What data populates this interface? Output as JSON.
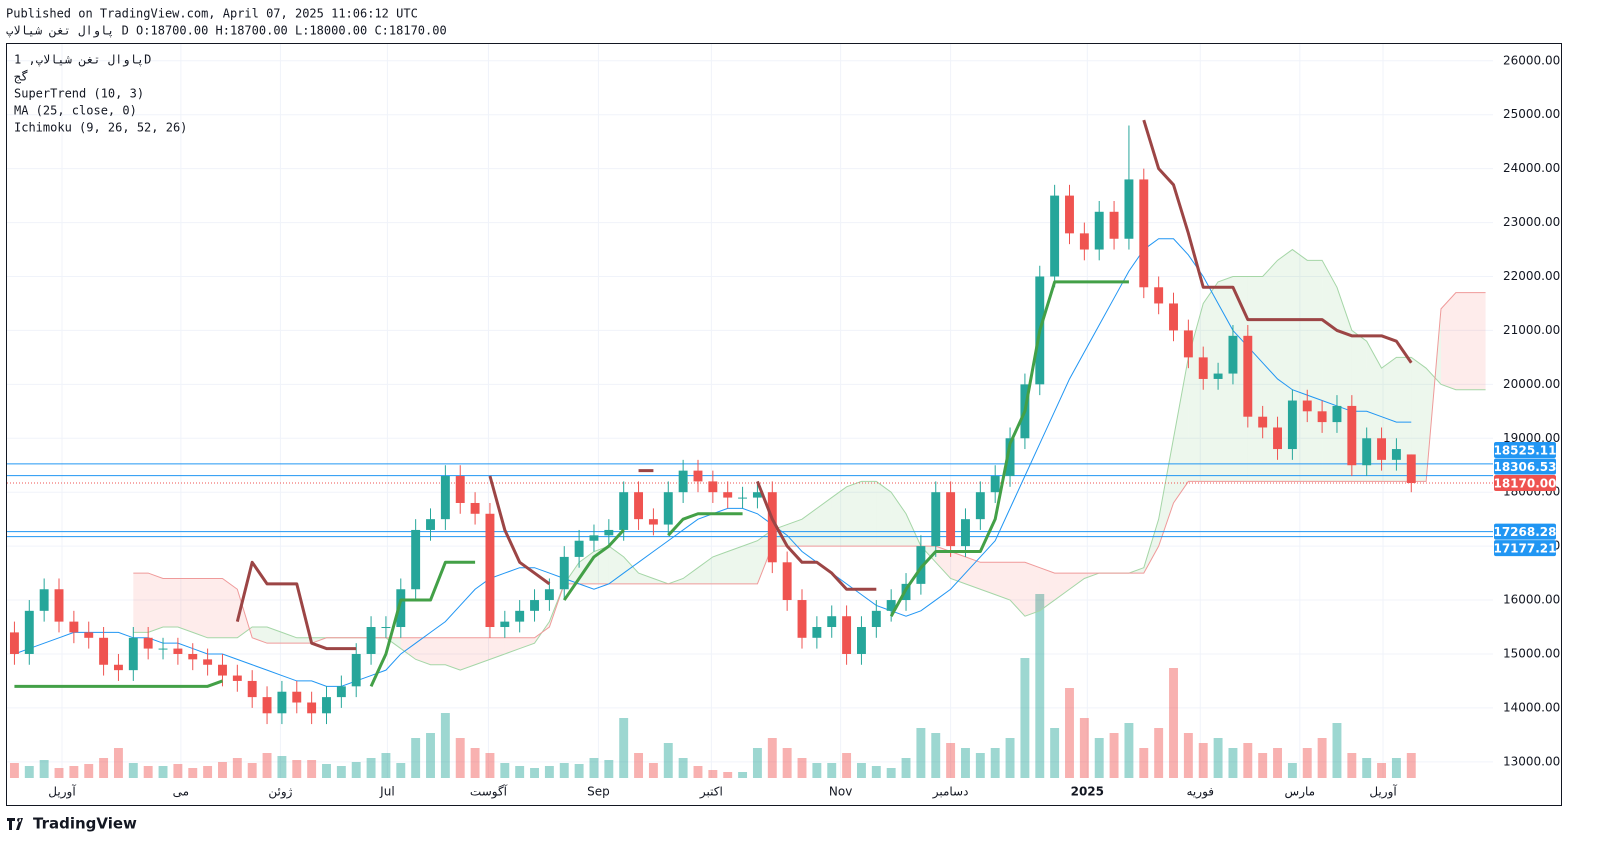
{
  "header": {
    "published": "Published on TradingView.com, April 07, 2025 11:06:12 UTC",
    "ohlc_line": "پاوال تغن شیالاپ D O:18700.00 H:18700.00 L:18000.00 C:18170.00"
  },
  "legend": {
    "symbol": "پاوال تغن شیالاپ, 1D",
    "exchange": "گج",
    "indicators": [
      "SuperTrend (10, 3)",
      "MA (25, close, 0)",
      "Ichimoku (9, 26, 52, 26)"
    ]
  },
  "footer": {
    "brand": "TradingView"
  },
  "chart_data": {
    "type": "candlestick",
    "grid": true,
    "xlim": [
      -0.5,
      99.5
    ],
    "xticks": [
      {
        "value": 3.2,
        "label": "آوریل"
      },
      {
        "value": 11.2,
        "label": "می"
      },
      {
        "value": 17.9,
        "label": "ژوئن"
      },
      {
        "value": 25.1,
        "label": "Jul"
      },
      {
        "value": 31.9,
        "label": "آگوست"
      },
      {
        "value": 39.3,
        "label": "Sep"
      },
      {
        "value": 46.9,
        "label": "اکتبر"
      },
      {
        "value": 55.6,
        "label": "Nov"
      },
      {
        "value": 63.0,
        "label": "دسامبر"
      },
      {
        "value": 72.2,
        "label": "2025"
      },
      {
        "value": 79.8,
        "label": "فوریه"
      },
      {
        "value": 86.5,
        "label": "مارس"
      },
      {
        "value": 92.1,
        "label": "آوریل"
      }
    ],
    "ylim": [
      12700,
      26330
    ],
    "yticks": [
      {
        "value": 13000,
        "label": "13000.00"
      },
      {
        "value": 14000,
        "label": "14000.00"
      },
      {
        "value": 15000,
        "label": "15000.00"
      },
      {
        "value": 16000,
        "label": "16000.00"
      },
      {
        "value": 17000,
        "label": "17000.00"
      },
      {
        "value": 18000,
        "label": "18000.00"
      },
      {
        "value": 19000,
        "label": "19000.00"
      },
      {
        "value": 20000,
        "label": "20000.00"
      },
      {
        "value": 21000,
        "label": "21000.00"
      },
      {
        "value": 22000,
        "label": "22000.00"
      },
      {
        "value": 23000,
        "label": "23000.00"
      },
      {
        "value": 24000,
        "label": "24000.00"
      },
      {
        "value": 25000,
        "label": "25000.00"
      },
      {
        "value": 26000,
        "label": "26000.00"
      }
    ],
    "up_color": "#26a69a",
    "down_color": "#ef5350",
    "open": [
      15400,
      15000,
      15800,
      16200,
      15600,
      15400,
      15300,
      14800,
      14700,
      15300,
      15100,
      15100,
      15000,
      14900,
      14800,
      14600,
      14500,
      14200,
      13900,
      14300,
      14100,
      13900,
      14200,
      14400,
      15000,
      15500,
      15500,
      16200,
      17300,
      17500,
      18300,
      17800,
      17600,
      15500,
      15600,
      15800,
      16000,
      16200,
      16800,
      17100,
      17200,
      17300,
      18000,
      17500,
      17400,
      18000,
      18400,
      18200,
      18000,
      17900,
      17900,
      18000,
      16700,
      16000,
      15300,
      15500,
      15700,
      15000,
      15500,
      15800,
      16000,
      16300,
      17000,
      18000,
      17000,
      17500,
      18000,
      18300,
      19000,
      20000,
      22000,
      23500,
      22800,
      22500,
      23200,
      22700,
      23800,
      21800,
      21500,
      21000,
      20500,
      20100,
      20200,
      20900,
      19400,
      19200,
      18800,
      19700,
      19500,
      19300,
      19600,
      18500,
      19000,
      18600,
      18700
    ],
    "high": [
      15600,
      16000,
      16400,
      16400,
      15800,
      15600,
      15500,
      15000,
      15500,
      15500,
      15300,
      15300,
      15200,
      15100,
      15000,
      14800,
      14700,
      14400,
      14500,
      14500,
      14300,
      14400,
      14600,
      15200,
      15700,
      15700,
      16400,
      17500,
      17700,
      18500,
      18500,
      18000,
      17800,
      15800,
      16000,
      16200,
      16400,
      17000,
      17300,
      17400,
      17500,
      18200,
      18200,
      17700,
      18200,
      18600,
      18600,
      18400,
      18200,
      18100,
      18200,
      18200,
      16900,
      16200,
      15700,
      15900,
      15900,
      15700,
      16000,
      16200,
      16500,
      17200,
      18200,
      18200,
      17700,
      18200,
      18500,
      19200,
      20200,
      22200,
      23700,
      23700,
      23000,
      23400,
      23400,
      24800,
      24000,
      22000,
      21700,
      21200,
      20700,
      20400,
      21100,
      21100,
      19600,
      19400,
      19900,
      19900,
      19700,
      19800,
      19800,
      19200,
      19200,
      19000,
      18700
    ],
    "low": [
      14800,
      14800,
      15600,
      15400,
      15200,
      15100,
      14600,
      14500,
      14500,
      14900,
      14900,
      14800,
      14700,
      14600,
      14400,
      14300,
      14000,
      13700,
      13700,
      13900,
      13700,
      13700,
      14000,
      14200,
      14800,
      15300,
      15300,
      16000,
      17100,
      17300,
      17600,
      17400,
      15300,
      15300,
      15400,
      15600,
      15800,
      16000,
      16600,
      16900,
      17000,
      17100,
      17300,
      17200,
      17200,
      17800,
      18000,
      17800,
      17700,
      17700,
      17700,
      16500,
      15800,
      15100,
      15100,
      15300,
      14800,
      14800,
      15300,
      15600,
      15800,
      16100,
      16800,
      16800,
      16800,
      17300,
      17800,
      18100,
      18800,
      19800,
      21800,
      22600,
      22300,
      22300,
      22500,
      22500,
      21600,
      21300,
      20800,
      20300,
      19900,
      19900,
      20000,
      19200,
      19000,
      18600,
      18600,
      19300,
      19100,
      19100,
      18300,
      18300,
      18400,
      18400,
      18000
    ],
    "close": [
      15000,
      15800,
      16200,
      15600,
      15400,
      15300,
      14800,
      14700,
      15300,
      15100,
      15100,
      15000,
      14900,
      14800,
      14600,
      14500,
      14200,
      13900,
      14300,
      14100,
      13900,
      14200,
      14400,
      15000,
      15500,
      15500,
      16200,
      17300,
      17500,
      18300,
      17800,
      17600,
      15500,
      15600,
      15800,
      16000,
      16200,
      16800,
      17100,
      17200,
      17300,
      18000,
      17500,
      17400,
      18000,
      18400,
      18200,
      18000,
      17900,
      17900,
      18000,
      16700,
      16000,
      15300,
      15500,
      15700,
      15000,
      15500,
      15800,
      16000,
      16300,
      17000,
      18000,
      17000,
      17500,
      18000,
      18300,
      19000,
      20000,
      22000,
      23500,
      22800,
      22500,
      23200,
      22700,
      23800,
      21800,
      21500,
      21000,
      20500,
      20100,
      20200,
      20900,
      19400,
      19200,
      18800,
      19700,
      19500,
      19300,
      19600,
      18500,
      19000,
      18600,
      18800,
      18170
    ],
    "volume": [
      15,
      12,
      18,
      10,
      12,
      14,
      20,
      30,
      15,
      12,
      12,
      14,
      10,
      12,
      16,
      20,
      15,
      25,
      22,
      18,
      18,
      14,
      12,
      16,
      20,
      25,
      15,
      40,
      45,
      65,
      40,
      30,
      25,
      15,
      12,
      10,
      12,
      15,
      14,
      20,
      18,
      60,
      25,
      15,
      35,
      20,
      12,
      8,
      6,
      6,
      30,
      40,
      30,
      20,
      15,
      15,
      25,
      15,
      12,
      10,
      20,
      50,
      45,
      35,
      30,
      25,
      30,
      40,
      120,
      184,
      50,
      90,
      60,
      40,
      45,
      55,
      30,
      50,
      110,
      45,
      35,
      40,
      30,
      35,
      25,
      30,
      15,
      30,
      40,
      55,
      25,
      20,
      15,
      20,
      25
    ],
    "supertrend": {
      "up_color": "#43a047",
      "down_color": "#9c4545",
      "values": [
        14400,
        14400,
        14400,
        14400,
        14400,
        14400,
        14400,
        14400,
        14400,
        14400,
        14400,
        14400,
        14400,
        14400,
        14500,
        15600,
        16700,
        16300,
        16300,
        16300,
        15200,
        15100,
        15100,
        15100,
        14400,
        15000,
        16000,
        16000,
        16000,
        16700,
        16700,
        16700,
        18300,
        17300,
        16700,
        16500,
        16300,
        16000,
        16400,
        16800,
        17000,
        17300,
        18400,
        18400,
        17200,
        17500,
        17600,
        17600,
        17600,
        17600,
        18200,
        17500,
        17000,
        16700,
        16700,
        16500,
        16200,
        16200,
        16200,
        15700,
        16200,
        16600,
        16900,
        16900,
        16900,
        16900,
        17500,
        18900,
        19500,
        21000,
        21900,
        21900,
        21900,
        21900,
        21900,
        21900,
        24900,
        24000,
        23700,
        22800,
        21800,
        21800,
        21800,
        21200,
        21200,
        21200,
        21200,
        21200,
        21200,
        21000,
        20900,
        20900,
        20900,
        20800,
        20400
      ]
    },
    "ma": {
      "color": "#2196f3",
      "values": [
        15000,
        15100,
        15200,
        15300,
        15400,
        15400,
        15400,
        15400,
        15300,
        15300,
        15200,
        15200,
        15100,
        15000,
        15000,
        14900,
        14800,
        14700,
        14600,
        14500,
        14500,
        14400,
        14400,
        14500,
        14600,
        14700,
        15000,
        15200,
        15400,
        15600,
        15900,
        16200,
        16400,
        16500,
        16600,
        16600,
        16500,
        16400,
        16300,
        16200,
        16300,
        16500,
        16700,
        16900,
        17100,
        17300,
        17500,
        17600,
        17700,
        17700,
        17600,
        17400,
        17200,
        16900,
        16700,
        16500,
        16300,
        16100,
        15900,
        15800,
        15700,
        15800,
        16000,
        16200,
        16500,
        16800,
        17100,
        17700,
        18300,
        18900,
        19500,
        20100,
        20600,
        21100,
        21600,
        22100,
        22500,
        22700,
        22700,
        22400,
        22000,
        21500,
        21000,
        20700,
        20400,
        20100,
        19900,
        19800,
        19700,
        19600,
        19500,
        19500,
        19400,
        19300,
        19300
      ]
    },
    "ichimoku": {
      "span_a_color": "#a5d6a7",
      "span_b_color": "#ef9a9a",
      "up_fill": "#4caf50",
      "down_fill": "#f44336",
      "span_a": [
        null,
        null,
        null,
        null,
        null,
        null,
        null,
        null,
        15400,
        15400,
        15500,
        15500,
        15400,
        15300,
        15300,
        15300,
        15500,
        15500,
        15400,
        15300,
        15300,
        15300,
        15300,
        15300,
        15300,
        15300,
        15100,
        14900,
        14800,
        14800,
        14700,
        14800,
        14900,
        15000,
        15100,
        15200,
        15600,
        16300,
        16700,
        16900,
        17000,
        16800,
        16500,
        16400,
        16300,
        16400,
        16600,
        16800,
        16900,
        17000,
        17100,
        17300,
        17400,
        17500,
        17700,
        17900,
        18100,
        18200,
        18200,
        18000,
        17600,
        17000,
        16700,
        16400,
        16300,
        16200,
        16100,
        16000,
        15700,
        15800,
        16000,
        16200,
        16400,
        16500,
        16500,
        16500,
        16600,
        17500,
        19000,
        20500,
        21500,
        21900,
        22000,
        22000,
        22000,
        22300,
        22500,
        22300,
        22300,
        21800,
        21000,
        20800,
        20300,
        20500,
        20500,
        20300,
        20000,
        19900,
        19900,
        19900
      ],
      "span_b": [
        null,
        null,
        null,
        null,
        null,
        null,
        null,
        null,
        16500,
        16500,
        16400,
        16400,
        16400,
        16400,
        16400,
        16200,
        15300,
        15200,
        15200,
        15200,
        15200,
        15300,
        15300,
        15300,
        15300,
        15300,
        15300,
        15300,
        15300,
        15300,
        15300,
        15300,
        15300,
        15300,
        15300,
        15300,
        15500,
        16300,
        16300,
        16300,
        16300,
        16300,
        16300,
        16300,
        16300,
        16300,
        16300,
        16300,
        16300,
        16300,
        16300,
        17000,
        17000,
        17000,
        17000,
        17000,
        17000,
        17000,
        17000,
        17000,
        17000,
        17000,
        17000,
        16900,
        16800,
        16700,
        16700,
        16700,
        16700,
        16600,
        16500,
        16500,
        16500,
        16500,
        16500,
        16500,
        16500,
        17000,
        17800,
        18200,
        18200,
        18200,
        18200,
        18200,
        18200,
        18200,
        18200,
        18200,
        18200,
        18200,
        18200,
        18200,
        18200,
        18200,
        18200,
        18200,
        21400,
        21700,
        21700,
        21700
      ]
    },
    "price_lines": {
      "values": [
        18525.11,
        18306.53,
        18170,
        17268.28,
        17177.21
      ],
      "value_labels": [
        "18525.11",
        "18306.53",
        "18170.00",
        "17268.28",
        "17177.21"
      ],
      "colors": [
        "#2196f3",
        "#2196f3",
        "#ef5350",
        "#2196f3",
        "#2196f3"
      ]
    }
  }
}
